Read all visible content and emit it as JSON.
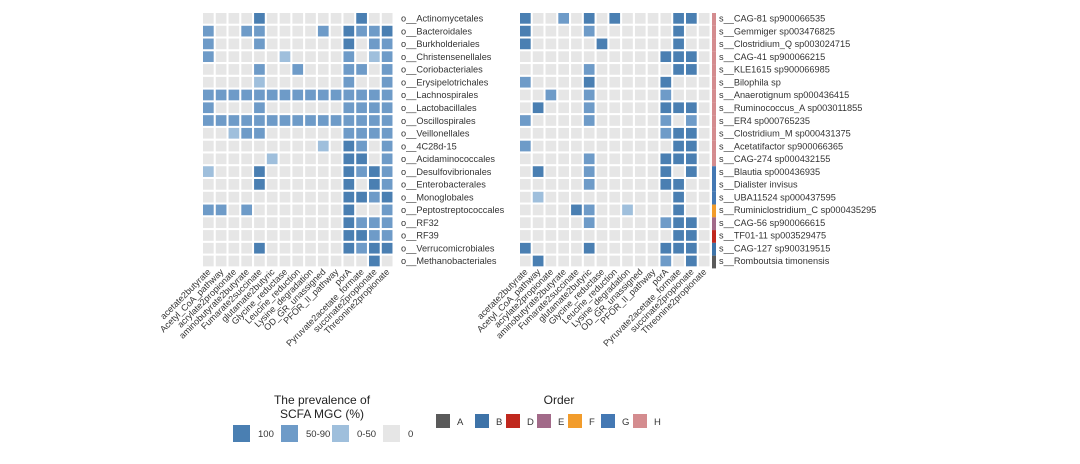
{
  "chart_data": [
    {
      "type": "heatmap",
      "title": "",
      "x_categories": [
        "acetate2butyrate",
        "Acetyl_CoA_pathway",
        "acrylate2propionate",
        "aminobutyrate2butyrate",
        "Fumarate2succinate",
        "glutamate2butyric",
        "Glycine_reductase",
        "Leucine_reduction",
        "Lysine_degradation",
        "OD_GR_unassigned",
        "PFOR_II_pathway",
        "porA",
        "Pyruvate2acetate_formate",
        "succinate2propionate",
        "Threonine2propionate"
      ],
      "y_categories": [
        "o__Actinomycetales",
        "o__Bacteroidales",
        "o__Burkholderiales",
        "o__Christensenellales",
        "o__Coriobacteriales",
        "o__Erysipelotrichales",
        "o__Lachnospirales",
        "o__Lactobacillales",
        "o__Oscillospirales",
        "o__Veillonellales",
        "o__4C28d-15",
        "o__Acidaminococcales",
        "o__Desulfovibrionales",
        "o__Enterobacterales",
        "o__Monoglobales",
        "o__Peptostreptococcales",
        "o__RF32",
        "o__RF39",
        "o__Verrucomicrobiales",
        "o__Methanobacteriales"
      ],
      "value_levels": "0 = 0, 1 = 0-50, 2 = 50-90, 3 = 100",
      "values": [
        [
          0,
          0,
          0,
          0,
          3,
          0,
          0,
          0,
          0,
          0,
          0,
          0,
          3,
          0,
          0
        ],
        [
          2,
          0,
          0,
          2,
          2,
          0,
          0,
          0,
          0,
          2,
          0,
          3,
          2,
          2,
          3
        ],
        [
          2,
          0,
          0,
          0,
          2,
          0,
          0,
          0,
          0,
          0,
          0,
          3,
          0,
          2,
          2
        ],
        [
          2,
          0,
          0,
          0,
          0,
          0,
          1,
          0,
          0,
          0,
          0,
          2,
          0,
          1,
          2
        ],
        [
          0,
          0,
          0,
          0,
          2,
          0,
          0,
          2,
          0,
          0,
          0,
          2,
          2,
          0,
          2
        ],
        [
          0,
          0,
          0,
          0,
          1,
          0,
          0,
          0,
          0,
          0,
          0,
          2,
          0,
          0,
          2
        ],
        [
          2,
          2,
          2,
          2,
          2,
          2,
          2,
          2,
          2,
          2,
          2,
          2,
          2,
          2,
          2
        ],
        [
          2,
          0,
          0,
          0,
          2,
          0,
          0,
          0,
          0,
          0,
          0,
          2,
          2,
          2,
          2
        ],
        [
          2,
          2,
          2,
          2,
          2,
          2,
          2,
          2,
          2,
          2,
          2,
          2,
          2,
          2,
          2
        ],
        [
          0,
          0,
          1,
          2,
          2,
          0,
          0,
          0,
          0,
          0,
          0,
          2,
          2,
          2,
          2
        ],
        [
          0,
          0,
          0,
          0,
          0,
          0,
          0,
          0,
          0,
          1,
          0,
          3,
          2,
          0,
          2
        ],
        [
          0,
          0,
          0,
          0,
          0,
          1,
          0,
          0,
          0,
          0,
          0,
          3,
          3,
          0,
          2
        ],
        [
          1,
          0,
          0,
          0,
          3,
          0,
          0,
          0,
          0,
          0,
          0,
          3,
          2,
          3,
          2
        ],
        [
          0,
          0,
          0,
          0,
          3,
          0,
          0,
          0,
          0,
          0,
          0,
          3,
          0,
          3,
          2
        ],
        [
          0,
          0,
          0,
          0,
          0,
          0,
          0,
          0,
          0,
          0,
          0,
          3,
          3,
          2,
          3
        ],
        [
          2,
          2,
          0,
          2,
          0,
          0,
          0,
          0,
          0,
          0,
          0,
          3,
          0,
          0,
          2
        ],
        [
          0,
          0,
          0,
          0,
          0,
          0,
          0,
          0,
          0,
          0,
          0,
          3,
          2,
          2,
          2
        ],
        [
          0,
          0,
          0,
          0,
          0,
          0,
          0,
          0,
          0,
          0,
          0,
          3,
          3,
          2,
          2
        ],
        [
          0,
          0,
          0,
          0,
          3,
          0,
          0,
          0,
          0,
          0,
          0,
          3,
          2,
          3,
          3
        ],
        [
          0,
          0,
          0,
          0,
          0,
          0,
          0,
          0,
          0,
          0,
          0,
          0,
          0,
          3,
          0
        ]
      ]
    },
    {
      "type": "heatmap",
      "title": "",
      "x_categories": [
        "acetate2butyrate",
        "Acetyl_CoA_pathway",
        "acrylate2propionate",
        "aminobutyrate2butyrate",
        "Fumarate2succinate",
        "glutamate2butyric",
        "Glycine_reductase",
        "Leucine_reduction",
        "Lysine_degradation",
        "OD_GR_unassigned",
        "PFOR_II_pathway",
        "porA",
        "Pyruvate2acetate_formate",
        "succinate2propionate",
        "Threonine2propionate"
      ],
      "y_categories": [
        "s__CAG-81 sp900066535",
        "s__Gemmiger sp003476825",
        "s__Clostridium_Q sp003024715",
        "s__CAG-41 sp900066215",
        "s__KLE1615 sp900066985",
        "s__Bilophila sp",
        "s__Anaerotignum sp000436415",
        "s__Ruminococcus_A sp003011855",
        "s__ER4 sp000765235",
        "s__Clostridium_M sp000431375",
        "s__Acetatifactor sp900066365",
        "s__CAG-274 sp000432155",
        "s__Blautia sp000436935",
        "s__Dialister invisus",
        "s__UBA11524 sp000437595",
        "s__Ruminiclostridium_C sp000435295",
        "s__CAG-56 sp900066615",
        "s__TF01-11 sp003529475",
        "s__CAG-127 sp900319515",
        "s__Romboutsia timonensis"
      ],
      "row_order": [
        "H",
        "H",
        "H",
        "H",
        "H",
        "H",
        "H",
        "H",
        "H",
        "H",
        "H",
        "H",
        "G",
        "G",
        "G",
        "F",
        "E",
        "D",
        "B",
        "A"
      ],
      "value_levels": "0 = 0, 1 = 0-50, 2 = 50-90, 3 = 100",
      "values": [
        [
          3,
          0,
          0,
          2,
          0,
          3,
          0,
          3,
          0,
          0,
          0,
          0,
          3,
          3,
          0
        ],
        [
          3,
          0,
          0,
          0,
          0,
          2,
          0,
          0,
          0,
          0,
          0,
          0,
          3,
          0,
          0
        ],
        [
          3,
          0,
          0,
          0,
          0,
          0,
          3,
          0,
          0,
          0,
          0,
          0,
          3,
          0,
          0
        ],
        [
          0,
          0,
          0,
          0,
          0,
          0,
          0,
          0,
          0,
          0,
          0,
          3,
          3,
          3,
          0
        ],
        [
          0,
          0,
          0,
          0,
          0,
          2,
          0,
          0,
          0,
          0,
          0,
          0,
          3,
          3,
          0
        ],
        [
          2,
          0,
          0,
          0,
          0,
          3,
          0,
          0,
          0,
          0,
          0,
          3,
          0,
          0,
          0
        ],
        [
          0,
          0,
          2,
          0,
          0,
          2,
          0,
          0,
          0,
          0,
          0,
          2,
          0,
          0,
          0
        ],
        [
          0,
          3,
          0,
          0,
          0,
          2,
          0,
          0,
          0,
          0,
          0,
          3,
          3,
          3,
          0
        ],
        [
          2,
          0,
          0,
          0,
          0,
          2,
          0,
          0,
          0,
          0,
          0,
          2,
          0,
          2,
          0
        ],
        [
          0,
          0,
          0,
          0,
          0,
          0,
          0,
          0,
          0,
          0,
          0,
          2,
          3,
          3,
          0
        ],
        [
          2,
          0,
          0,
          0,
          0,
          0,
          0,
          0,
          0,
          0,
          0,
          0,
          3,
          3,
          0
        ],
        [
          0,
          0,
          0,
          0,
          0,
          2,
          0,
          0,
          0,
          0,
          0,
          3,
          3,
          3,
          0
        ],
        [
          0,
          3,
          0,
          0,
          0,
          2,
          0,
          0,
          0,
          0,
          0,
          3,
          0,
          3,
          0
        ],
        [
          0,
          0,
          0,
          0,
          0,
          2,
          0,
          0,
          0,
          0,
          0,
          3,
          3,
          0,
          0
        ],
        [
          0,
          1,
          0,
          0,
          0,
          0,
          0,
          0,
          0,
          0,
          0,
          0,
          3,
          0,
          0
        ],
        [
          0,
          0,
          0,
          0,
          3,
          2,
          0,
          0,
          1,
          0,
          0,
          0,
          3,
          0,
          0
        ],
        [
          0,
          0,
          0,
          0,
          0,
          2,
          0,
          0,
          0,
          0,
          0,
          2,
          3,
          3,
          0
        ],
        [
          0,
          0,
          0,
          0,
          0,
          0,
          0,
          0,
          0,
          0,
          0,
          0,
          3,
          3,
          0
        ],
        [
          3,
          0,
          0,
          0,
          0,
          3,
          0,
          0,
          0,
          0,
          0,
          3,
          3,
          3,
          0
        ],
        [
          0,
          3,
          0,
          0,
          0,
          0,
          0,
          0,
          0,
          0,
          0,
          2,
          0,
          3,
          0
        ]
      ]
    }
  ],
  "legend_prevalence": {
    "title_line1": "The prevalence of",
    "title_line2": "SCFA MGC (%)",
    "items": [
      {
        "label": "100",
        "color": "#4a7fb2"
      },
      {
        "label": "50-90",
        "color": "#6e9bc8"
      },
      {
        "label": "0-50",
        "color": "#9fbfdc"
      },
      {
        "label": "0",
        "color": "#e6e6e6"
      }
    ]
  },
  "legend_order": {
    "title": "Order",
    "items": [
      {
        "label": "A",
        "color": "#5a5a5a"
      },
      {
        "label": "B",
        "color": "#3e73a8"
      },
      {
        "label": "D",
        "color": "#c0281e"
      },
      {
        "label": "E",
        "color": "#a26a89"
      },
      {
        "label": "F",
        "color": "#f29c2b"
      },
      {
        "label": "G",
        "color": "#4478b3"
      },
      {
        "label": "H",
        "color": "#d48c8f"
      }
    ]
  },
  "colors": {
    "level0": "#e6e6e6",
    "level1": "#9fbfdc",
    "level2": "#6e9bc8",
    "level3": "#4a7fb2",
    "text": "#333333"
  }
}
